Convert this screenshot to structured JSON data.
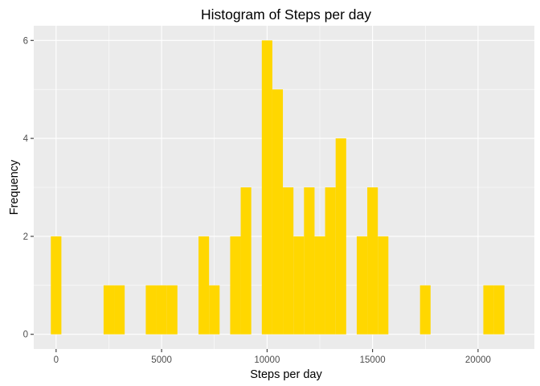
{
  "chart_data": {
    "type": "bar",
    "title": "Histogram of Steps per day",
    "xlabel": "Steps per day",
    "ylabel": "Frequency",
    "xlim": [
      -1060,
      22670
    ],
    "ylim": [
      -0.3,
      6.3
    ],
    "x_ticks": [
      0,
      5000,
      10000,
      15000,
      20000
    ],
    "x_tick_labels": [
      "0",
      "5000",
      "10000",
      "15000",
      "20000"
    ],
    "y_ticks": [
      0,
      2,
      4,
      6
    ],
    "y_tick_labels": [
      "0",
      "2",
      "4",
      "6"
    ],
    "bin_width": 500,
    "bin_centers": [
      0,
      2500,
      3000,
      4500,
      5000,
      5500,
      7000,
      7500,
      8500,
      9000,
      10000,
      10500,
      11000,
      11500,
      12000,
      12500,
      13000,
      13500,
      14500,
      15000,
      15500,
      17500,
      20500,
      21000
    ],
    "values": [
      2,
      1,
      1,
      1,
      1,
      1,
      2,
      1,
      2,
      3,
      6,
      5,
      3,
      2,
      3,
      2,
      3,
      4,
      2,
      3,
      2,
      1,
      1,
      1
    ],
    "grid": true,
    "colors": {
      "bar": "#FFD700",
      "panel": "#EBEBEB",
      "grid": "#FFFFFF"
    }
  }
}
